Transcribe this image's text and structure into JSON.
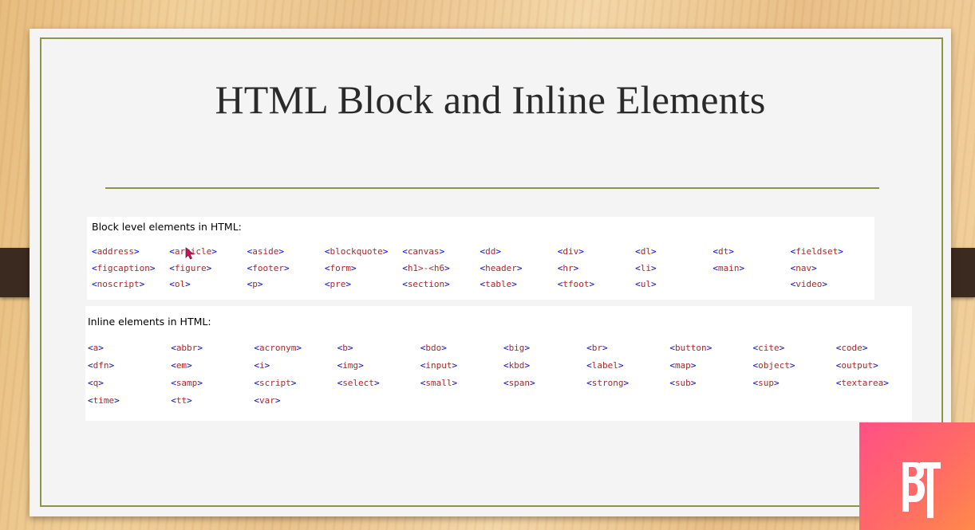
{
  "slide": {
    "title": "HTML Block and Inline Elements"
  },
  "block_panel": {
    "heading": "Block level elements in HTML:",
    "elements": [
      "address",
      "article",
      "aside",
      "blockquote",
      "canvas",
      "dd",
      "div",
      "dl",
      "dt",
      "fieldset",
      "figcaption",
      "figure",
      "footer",
      "form",
      "h1>-<h6",
      "header",
      "hr",
      "li",
      "main",
      "nav",
      "noscript",
      "ol",
      "p",
      "pre",
      "section",
      "table",
      "tfoot",
      "ul",
      "video"
    ],
    "layout_rows": [
      [
        "address",
        "article",
        "aside",
        "blockquote",
        "canvas",
        "dd",
        "div",
        "dl",
        "dt",
        "fieldset"
      ],
      [
        "figcaption",
        "figure",
        "footer",
        "form",
        "h1>-<h6",
        "header",
        "hr",
        "li",
        "main",
        "nav"
      ],
      [
        "noscript",
        "ol",
        "p",
        "pre",
        "section",
        "table",
        "tfoot",
        "ul",
        "",
        "video"
      ]
    ]
  },
  "inline_panel": {
    "heading": "Inline elements in HTML:",
    "layout_rows": [
      [
        "a",
        "abbr",
        "acronym",
        "b",
        "bdo",
        "big",
        "br",
        "button",
        "cite",
        "code"
      ],
      [
        "dfn",
        "em",
        "i",
        "img",
        "input",
        "kbd",
        "label",
        "map",
        "object",
        "output"
      ],
      [
        "q",
        "samp",
        "script",
        "select",
        "small",
        "span",
        "strong",
        "sub",
        "sup",
        "textarea"
      ],
      [
        "time",
        "tt",
        "var"
      ]
    ]
  },
  "colors": {
    "tag_name": "#a52a2a",
    "angle_bracket": "#0000cd",
    "slide_accent": "#8b9447",
    "logo_gradient_start": "#ff4f86",
    "logo_gradient_end": "#ff8a4a"
  },
  "icons": {
    "cursor": "mouse-pointer-icon",
    "logo": "bt-logo-icon"
  },
  "logo_text": "BT"
}
